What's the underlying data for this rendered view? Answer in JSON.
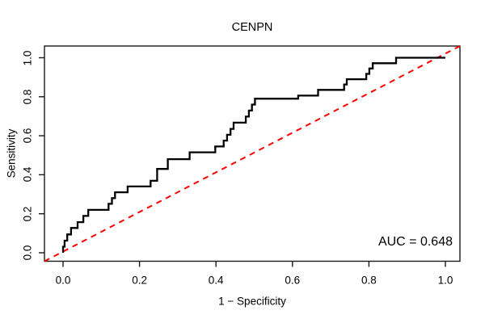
{
  "figure": {
    "title": "CENPN",
    "x_axis_label": "1 − Specificity",
    "y_axis_label": "Sensitivity",
    "auc_label": "AUC = 0.648"
  },
  "chart_data": {
    "type": "line",
    "subtype": "roc-step-curve",
    "title": "CENPN",
    "xlabel": "1 − Specificity",
    "ylabel": "Sensitivity",
    "xlim": [
      0,
      1
    ],
    "ylim": [
      0,
      1
    ],
    "grid": false,
    "legend": "none",
    "auc": 0.648,
    "annotation": {
      "text": "AUC = 0.648",
      "position": "bottom-right"
    },
    "x_ticks": [
      {
        "value": 0.0,
        "label": "0.0"
      },
      {
        "value": 0.2,
        "label": "0.2"
      },
      {
        "value": 0.4,
        "label": "0.4"
      },
      {
        "value": 0.6,
        "label": "0.6"
      },
      {
        "value": 0.8,
        "label": "0.8"
      },
      {
        "value": 1.0,
        "label": "1.0"
      }
    ],
    "y_ticks": [
      {
        "value": 0.0,
        "label": "0.0"
      },
      {
        "value": 0.2,
        "label": "0.2"
      },
      {
        "value": 0.4,
        "label": "0.4"
      },
      {
        "value": 0.6,
        "label": "0.6"
      },
      {
        "value": 0.8,
        "label": "0.8"
      },
      {
        "value": 1.0,
        "label": "1.0"
      }
    ],
    "series": [
      {
        "name": "ROC curve",
        "color": "#000000",
        "line_style": "solid",
        "line_width": 2.3,
        "points": [
          [
            0.0,
            0.0
          ],
          [
            0.0,
            0.031
          ],
          [
            0.004,
            0.031
          ],
          [
            0.004,
            0.062
          ],
          [
            0.011,
            0.062
          ],
          [
            0.011,
            0.094
          ],
          [
            0.021,
            0.094
          ],
          [
            0.021,
            0.127
          ],
          [
            0.038,
            0.127
          ],
          [
            0.038,
            0.157
          ],
          [
            0.053,
            0.157
          ],
          [
            0.053,
            0.189
          ],
          [
            0.066,
            0.189
          ],
          [
            0.066,
            0.22
          ],
          [
            0.119,
            0.22
          ],
          [
            0.119,
            0.251
          ],
          [
            0.128,
            0.251
          ],
          [
            0.128,
            0.28
          ],
          [
            0.136,
            0.28
          ],
          [
            0.136,
            0.31
          ],
          [
            0.169,
            0.31
          ],
          [
            0.169,
            0.34
          ],
          [
            0.229,
            0.34
          ],
          [
            0.229,
            0.369
          ],
          [
            0.246,
            0.369
          ],
          [
            0.246,
            0.43
          ],
          [
            0.274,
            0.43
          ],
          [
            0.274,
            0.48
          ],
          [
            0.331,
            0.48
          ],
          [
            0.331,
            0.515
          ],
          [
            0.398,
            0.515
          ],
          [
            0.398,
            0.545
          ],
          [
            0.42,
            0.545
          ],
          [
            0.42,
            0.575
          ],
          [
            0.429,
            0.575
          ],
          [
            0.429,
            0.605
          ],
          [
            0.438,
            0.605
          ],
          [
            0.438,
            0.635
          ],
          [
            0.446,
            0.635
          ],
          [
            0.446,
            0.667
          ],
          [
            0.478,
            0.667
          ],
          [
            0.478,
            0.698
          ],
          [
            0.486,
            0.698
          ],
          [
            0.486,
            0.729
          ],
          [
            0.494,
            0.729
          ],
          [
            0.494,
            0.76
          ],
          [
            0.502,
            0.76
          ],
          [
            0.502,
            0.79
          ],
          [
            0.615,
            0.79
          ],
          [
            0.615,
            0.806
          ],
          [
            0.667,
            0.806
          ],
          [
            0.667,
            0.835
          ],
          [
            0.735,
            0.835
          ],
          [
            0.735,
            0.863
          ],
          [
            0.742,
            0.863
          ],
          [
            0.742,
            0.89
          ],
          [
            0.793,
            0.89
          ],
          [
            0.793,
            0.917
          ],
          [
            0.801,
            0.917
          ],
          [
            0.801,
            0.945
          ],
          [
            0.81,
            0.945
          ],
          [
            0.81,
            0.972
          ],
          [
            0.871,
            0.972
          ],
          [
            0.871,
            1.0
          ],
          [
            1.0,
            1.0
          ]
        ]
      },
      {
        "name": "Chance diagonal",
        "color": "#FF0000",
        "line_style": "dashed",
        "line_width": 2,
        "points": [
          [
            0,
            0
          ],
          [
            1,
            1
          ]
        ]
      }
    ]
  },
  "colors": {
    "curve": "#000000",
    "diagonal": "#FF0000",
    "frame": "#1a1a1a",
    "text": "#000000",
    "background": "#FFFFFF"
  }
}
